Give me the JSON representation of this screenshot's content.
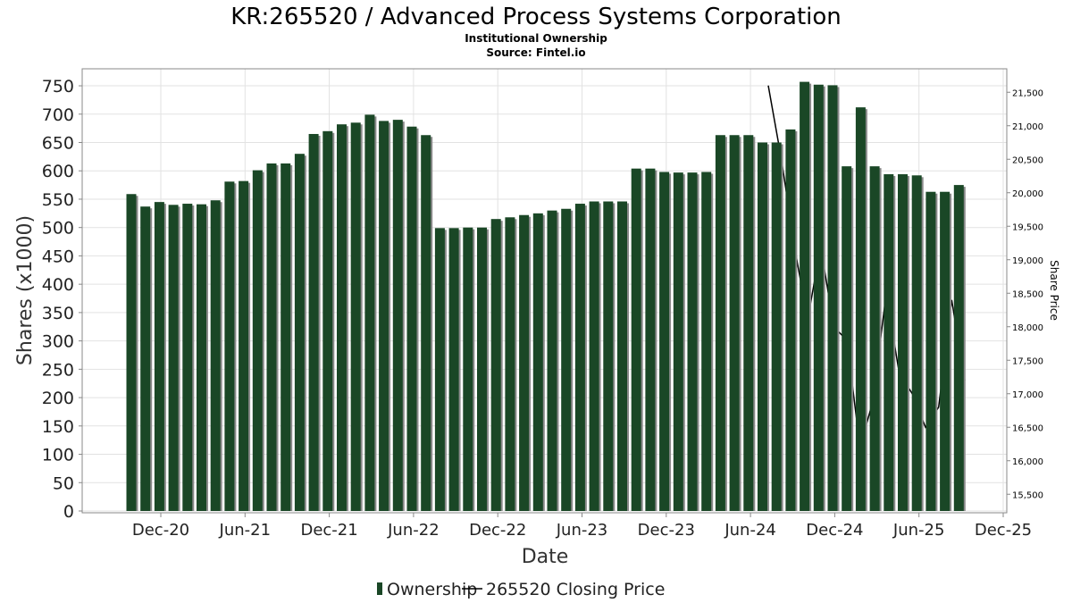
{
  "chart_data": {
    "type": "bar",
    "title": "KR:265520 / Advanced Process Systems Corporation",
    "subtitle": "Institutional Ownership",
    "source": "Source: Fintel.io",
    "xlabel": "Date",
    "ylabel": "Shares (x1000)",
    "y2label": "Share Price",
    "ylim": [
      0,
      780
    ],
    "y2lim": [
      15250,
      21850
    ],
    "grid": true,
    "legend_position": "bottom",
    "x_ticks": [
      "Dec-20",
      "Jun-21",
      "Dec-21",
      "Jun-22",
      "Dec-22",
      "Jun-23",
      "Dec-23",
      "Jun-24",
      "Dec-24",
      "Jun-25",
      "Dec-25"
    ],
    "y_ticks": [
      0,
      50,
      100,
      150,
      200,
      250,
      300,
      350,
      400,
      450,
      500,
      550,
      600,
      650,
      700,
      750
    ],
    "y2_ticks": [
      "15,500",
      "16,000",
      "16,500",
      "17,000",
      "17,500",
      "18,000",
      "18,500",
      "19,000",
      "19,500",
      "20,000",
      "20,500",
      "21,000",
      "21,500"
    ],
    "y2_tick_values": [
      15500,
      16000,
      16500,
      17000,
      17500,
      18000,
      18500,
      19000,
      19500,
      20000,
      20500,
      21000,
      21500
    ],
    "series": [
      {
        "name": "Ownership",
        "type": "bar",
        "color": "#1a4726",
        "values": [
          559,
          537,
          545,
          540,
          542,
          541,
          548,
          581,
          582,
          601,
          613,
          613,
          630,
          665,
          670,
          682,
          685,
          699,
          688,
          690,
          678,
          663,
          499,
          499,
          500,
          500,
          515,
          518,
          522,
          525,
          530,
          533,
          542,
          546,
          546,
          546,
          604,
          604,
          598,
          597,
          597,
          598,
          663,
          663,
          663,
          650,
          650,
          673,
          757,
          752,
          751,
          608,
          712,
          608,
          594,
          594,
          592,
          563,
          563,
          575
        ]
      },
      {
        "name": "265520 Closing Price",
        "type": "line",
        "color": "#000000",
        "values": [
          21600,
          20500,
          19200,
          18100,
          19200,
          18000,
          17800,
          16200,
          16900,
          18500,
          17300,
          17000,
          16500,
          16800,
          18400,
          17200
        ]
      }
    ]
  }
}
